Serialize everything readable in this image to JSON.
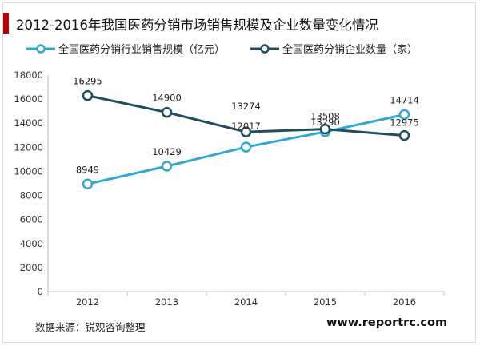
{
  "title": "2012-2016年我国医药分销市场销售规模及企业数量变化情况",
  "source": "数据来源：锐观咨询整理",
  "site": "www.reportrc.com",
  "colors": {
    "title_bar": "#c00000",
    "series1": "#31a8d4",
    "series2": "#1f4e5f"
  },
  "chart_data": {
    "type": "line",
    "title": "2012-2016年我国医药分销市场销售规模及企业数量变化情况",
    "x": [
      "2012",
      "2013",
      "2014",
      "2015",
      "2016"
    ],
    "ylim": [
      0,
      18000
    ],
    "yticks": [
      0,
      2000,
      4000,
      6000,
      8000,
      10000,
      12000,
      14000,
      16000,
      18000
    ],
    "grid": false,
    "legend": "top",
    "series": [
      {
        "name": "全国医药分销行业销售规模（亿元）",
        "values": [
          8949,
          10429,
          12017,
          13290,
          14714
        ],
        "labels": [
          "8949",
          "10429",
          "12017",
          "13290",
          "14714"
        ]
      },
      {
        "name": "全国医药分销企业数量（家）",
        "values": [
          16295,
          14900,
          13274,
          13508,
          12975
        ],
        "labels": [
          "16295",
          "14900",
          "13274",
          "13508",
          "12975"
        ]
      }
    ]
  }
}
